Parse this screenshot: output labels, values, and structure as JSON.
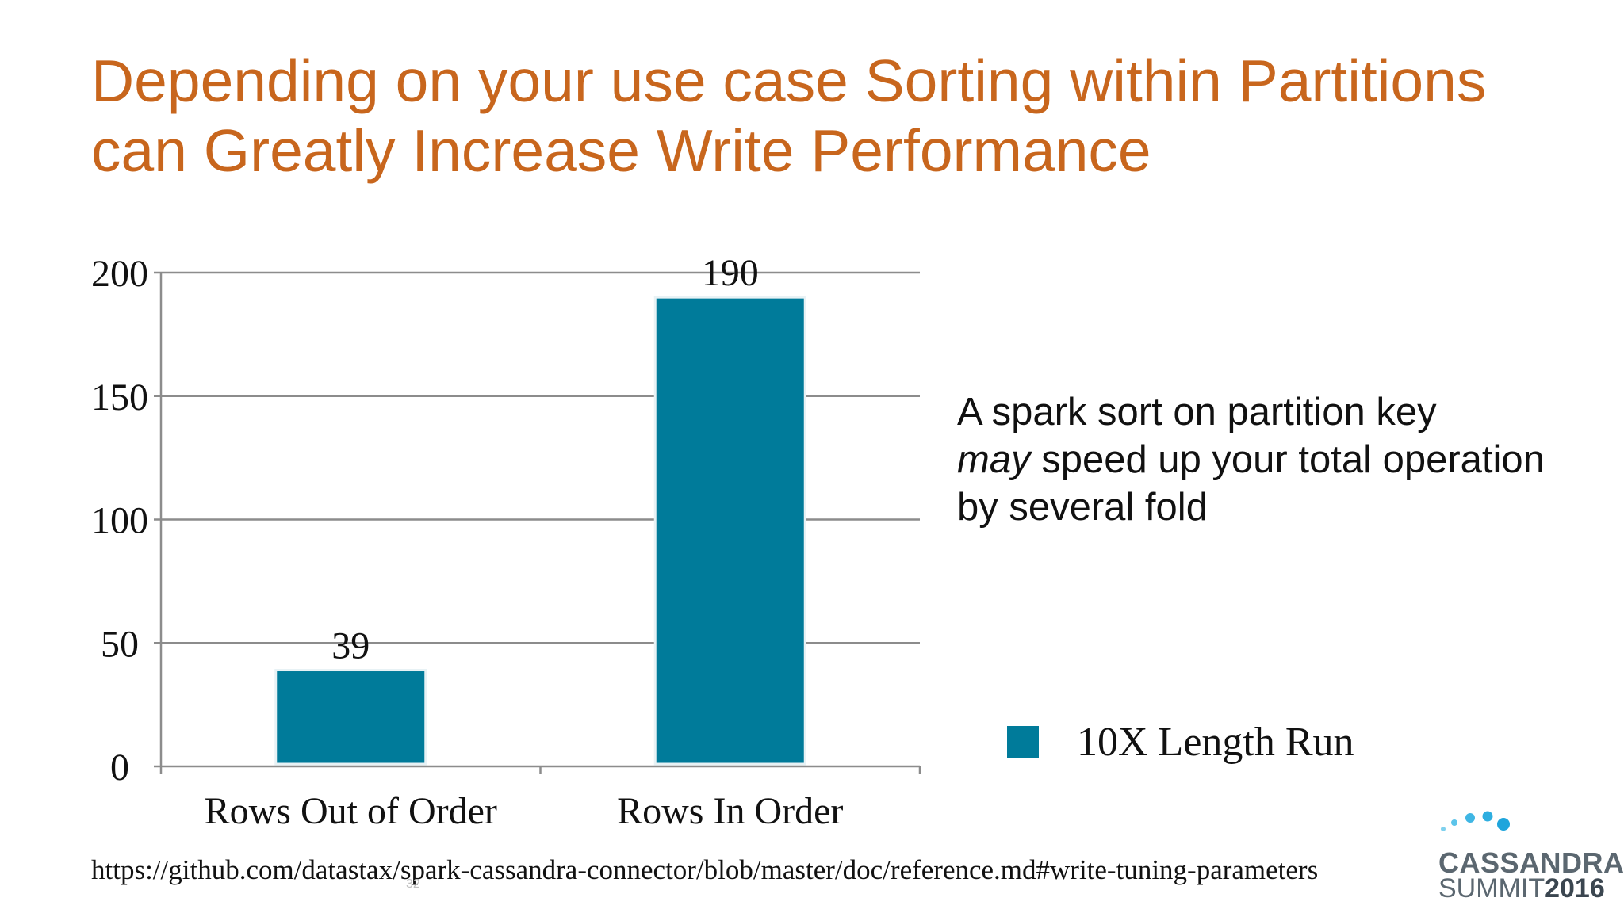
{
  "slide": {
    "title_lines": [
      "Depending on your use case Sorting within Partitions",
      "can Greatly Increase Write Performance"
    ],
    "bullet": {
      "line1": "A spark sort on partition key",
      "line2_em": "may",
      "line2_rest": " speed up your total operation",
      "line3": "by several fold"
    },
    "source_url": "https://github.com/datastax/spark-cassandra-connector/blob/master/doc/reference.md#write-tuning-parameters",
    "page_number": "32",
    "logo": {
      "line1": "CASSANDRA",
      "line2_a": "SUMMIT",
      "line2_b": "2016"
    }
  },
  "chart_data": {
    "type": "bar",
    "title": "",
    "xlabel": "",
    "ylabel": "",
    "categories": [
      "Rows Out of Order",
      "Rows In Order"
    ],
    "series": [
      {
        "name": "10X Length Run",
        "values": [
          39,
          190
        ],
        "color": "#007b9a"
      }
    ],
    "ylim": [
      0,
      200
    ],
    "yticks": [
      0,
      50,
      100,
      150,
      200
    ],
    "grid": true,
    "data_labels": true,
    "legend_position": "right"
  }
}
